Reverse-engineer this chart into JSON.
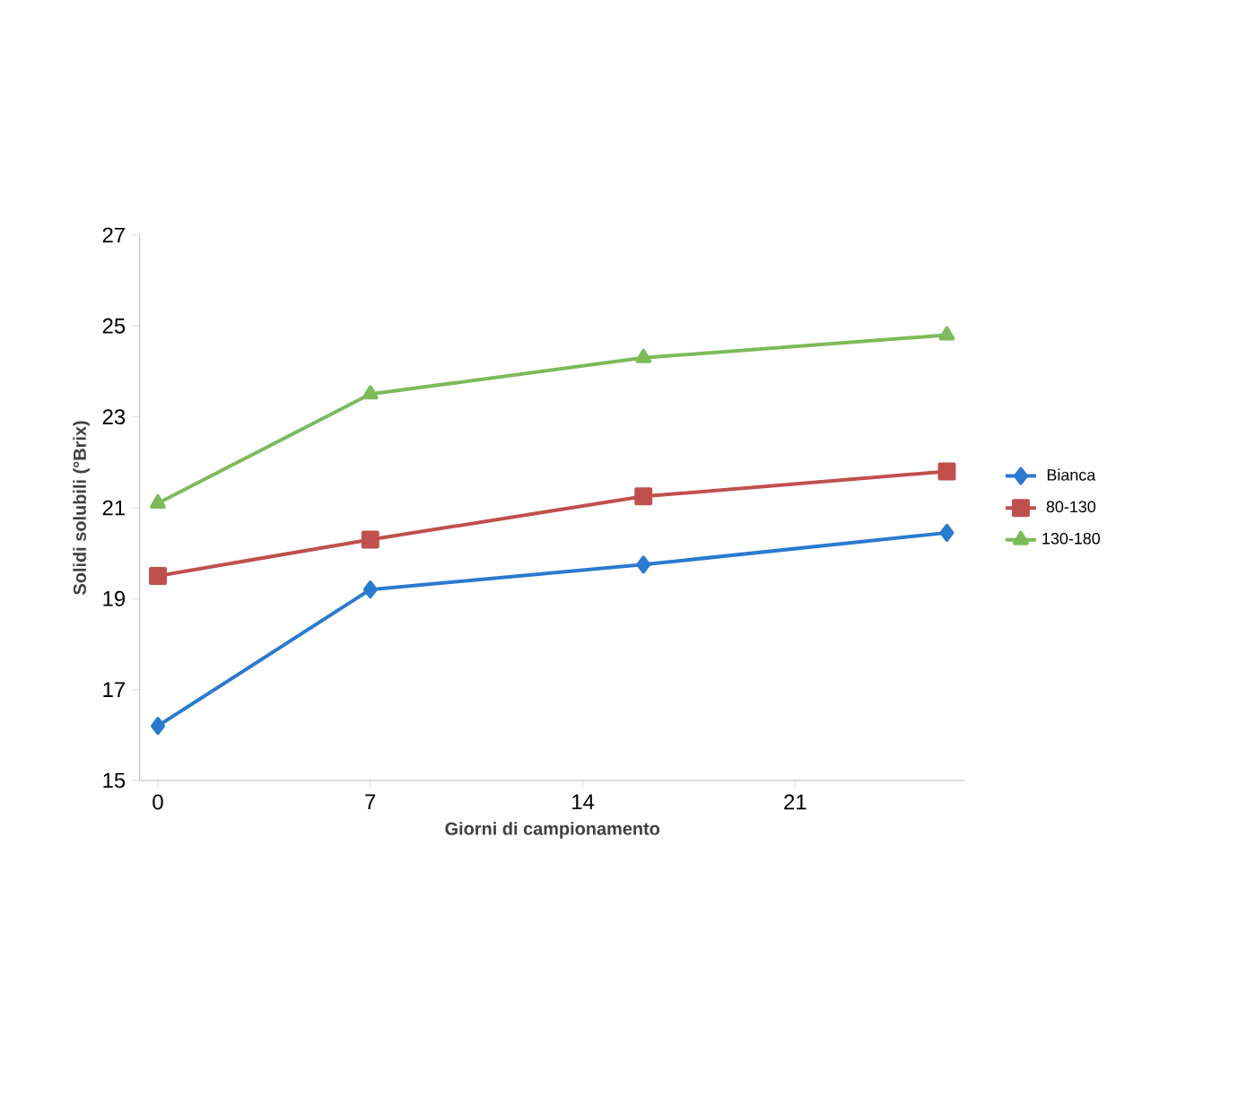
{
  "chart_data": {
    "type": "line",
    "xlabel": "Giorni di campionamento",
    "ylabel": "Solidi solubili (°Brix)",
    "x": [
      0,
      7,
      16,
      26
    ],
    "series": [
      {
        "name": "Bianca",
        "color": "#2a7ad0",
        "marker": "diamond",
        "values": [
          16.2,
          19.2,
          19.75,
          20.45
        ]
      },
      {
        "name": "80-130",
        "color": "#c0504d",
        "marker": "square",
        "values": [
          19.5,
          20.3,
          21.25,
          21.8
        ]
      },
      {
        "name": "130-180",
        "color": "#7dba5a",
        "marker": "triangle",
        "values": [
          21.1,
          23.5,
          24.3,
          24.8
        ]
      }
    ],
    "xlim": [
      -0.6,
      26.6
    ],
    "xticks": [
      0,
      7,
      14,
      21
    ],
    "ylim": [
      15,
      27
    ],
    "yticks": [
      15,
      17,
      19,
      21,
      23,
      25,
      27
    ],
    "grid": false,
    "legend": "right"
  }
}
